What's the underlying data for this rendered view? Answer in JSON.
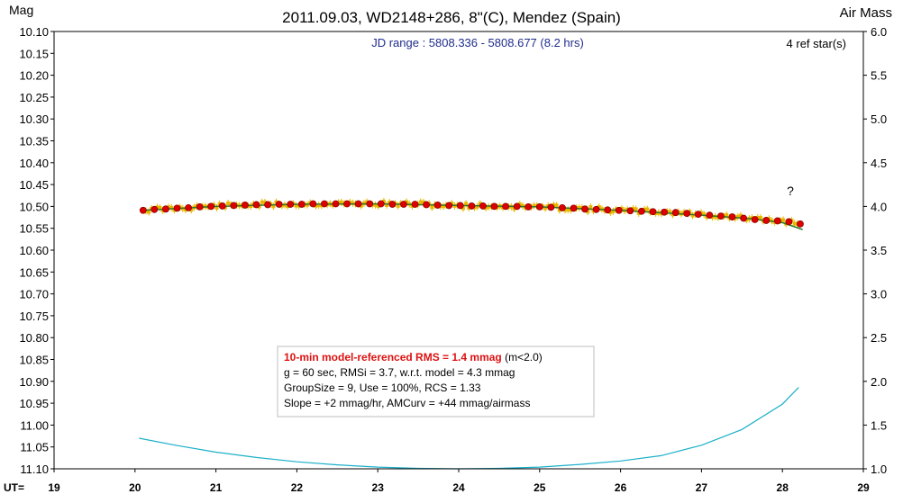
{
  "chart_data": {
    "type": "scatter",
    "title": "2011.09.03, WD2148+286, 8\"(C), Mendez (Spain)",
    "ylabel": "Mag",
    "y2label": "Air Mass",
    "xlabel_prefix": "UT=",
    "subtitle": "JD range : 5808.336 - 5808.677 (8.2 hrs)",
    "ref_stars": "4 ref star(s)",
    "annotation": "?",
    "xlim": [
      19,
      29
    ],
    "ylim": [
      10.1,
      11.1
    ],
    "y2lim": [
      6.0,
      1.0
    ],
    "y_inverted": true,
    "x_ticks": [
      19,
      20,
      21,
      22,
      23,
      24,
      25,
      26,
      27,
      28,
      29
    ],
    "x_tick_labels": [
      "19",
      "20",
      "21",
      "22",
      "23",
      "24",
      "25",
      "26",
      "27",
      "28",
      "29"
    ],
    "y_ticks": [
      10.1,
      10.15,
      10.2,
      10.25,
      10.3,
      10.35,
      10.4,
      10.45,
      10.5,
      10.55,
      10.6,
      10.65,
      10.7,
      10.75,
      10.8,
      10.85,
      10.9,
      10.95,
      11.0,
      11.05,
      11.1
    ],
    "y_tick_labels": [
      "10.10",
      "10.15",
      "10.20",
      "10.25",
      "10.30",
      "10.35",
      "10.40",
      "10.45",
      "10.50",
      "10.55",
      "10.60",
      "10.65",
      "10.70",
      "10.75",
      "10.80",
      "10.85",
      "10.90",
      "10.95",
      "11.00",
      "11.05",
      "11.10"
    ],
    "y2_ticks": [
      6.0,
      5.5,
      5.0,
      4.5,
      4.0,
      3.5,
      3.0,
      2.5,
      2.0,
      1.5,
      1.0
    ],
    "y2_tick_labels": [
      "6.0",
      "5.5",
      "5.0",
      "4.5",
      "4.0",
      "3.5",
      "3.0",
      "2.5",
      "2.0",
      "1.5",
      "1.0"
    ],
    "grid": false,
    "colors": {
      "group_mean": "#dd0000",
      "raw_points": "#e8b800",
      "model_line": "#2a7a2a",
      "airmass_curve": "#1ab0c8",
      "title_text": "#000000",
      "jd_text": "#1f2d8c",
      "rms_text": "#dd1111"
    },
    "series": [
      {
        "name": "group means",
        "x": [
          20.1,
          20.24,
          20.38,
          20.52,
          20.66,
          20.8,
          20.94,
          21.08,
          21.22,
          21.36,
          21.5,
          21.64,
          21.78,
          21.92,
          22.06,
          22.2,
          22.34,
          22.48,
          22.62,
          22.76,
          22.9,
          23.04,
          23.18,
          23.32,
          23.46,
          23.6,
          23.74,
          23.88,
          24.02,
          24.16,
          24.3,
          24.44,
          24.58,
          24.72,
          24.86,
          25.0,
          25.14,
          25.28,
          25.42,
          25.56,
          25.7,
          25.84,
          25.98,
          26.12,
          26.26,
          26.4,
          26.54,
          26.68,
          26.82,
          26.96,
          27.1,
          27.24,
          27.38,
          27.52,
          27.66,
          27.8,
          27.94,
          28.08,
          28.22
        ],
        "y": [
          10.509,
          10.507,
          10.506,
          10.504,
          10.503,
          10.501,
          10.5,
          10.499,
          10.498,
          10.497,
          10.496,
          10.496,
          10.495,
          10.495,
          10.495,
          10.494,
          10.494,
          10.494,
          10.494,
          10.494,
          10.494,
          10.494,
          10.495,
          10.495,
          10.495,
          10.496,
          10.497,
          10.498,
          10.498,
          10.499,
          10.499,
          10.5,
          10.5,
          10.5,
          10.501,
          10.501,
          10.502,
          10.503,
          10.504,
          10.506,
          10.507,
          10.508,
          10.509,
          10.51,
          10.511,
          10.512,
          10.513,
          10.514,
          10.516,
          10.518,
          10.52,
          10.522,
          10.524,
          10.527,
          10.53,
          10.532,
          10.533,
          10.535,
          10.54
        ]
      },
      {
        "name": "airmass",
        "axis": "right",
        "x": [
          20.05,
          20.5,
          21.0,
          21.5,
          22.0,
          22.5,
          23.0,
          23.5,
          24.0,
          24.5,
          25.0,
          25.5,
          26.0,
          26.5,
          27.0,
          27.5,
          28.0,
          28.2
        ],
        "y": [
          1.35,
          1.27,
          1.19,
          1.13,
          1.08,
          1.045,
          1.02,
          1.005,
          1.0,
          1.005,
          1.02,
          1.05,
          1.09,
          1.15,
          1.27,
          1.45,
          1.74,
          1.93
        ]
      },
      {
        "name": "model",
        "x": [
          20.1,
          21.0,
          22.0,
          23.0,
          24.0,
          25.0,
          26.0,
          27.0,
          27.6,
          28.0,
          28.25
        ],
        "y": [
          10.509,
          10.5,
          10.495,
          10.494,
          10.498,
          10.501,
          10.509,
          10.52,
          10.528,
          10.537,
          10.553
        ]
      }
    ]
  },
  "stats": {
    "line1_emph": "10-min model-referenced RMS = 1.4 mmag",
    "line1_rest": " (m<2.0)",
    "line2": "g = 60 sec, RMSi = 3.7, w.r.t. model = 4.3 mmag",
    "line3": "GroupSize = 9, Use = 100%, RCS = 1.33",
    "line4": "Slope = +2 mmag/hr, AMCurv = +44 mmag/airmass"
  }
}
